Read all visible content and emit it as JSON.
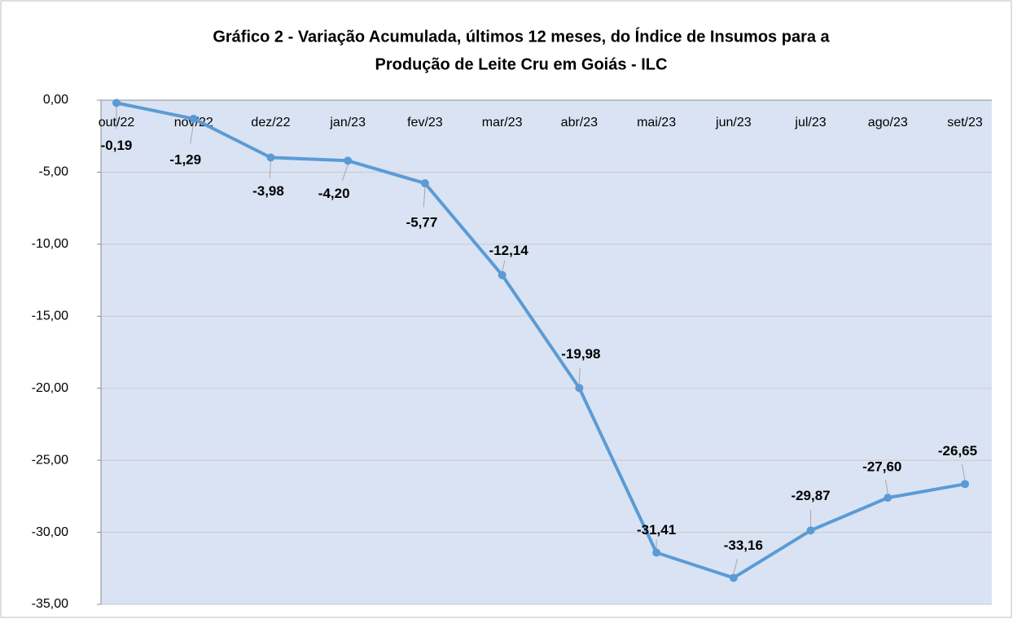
{
  "chart_data": {
    "type": "line",
    "title": [
      "Gráfico 2 - Variação Acumulada, últimos 12 meses, do Índice de Insumos para a",
      "Produção de Leite Cru em Goiás - ILC"
    ],
    "categories": [
      "out/22",
      "nov/22",
      "dez/22",
      "jan/23",
      "fev/23",
      "mar/23",
      "abr/23",
      "mai/23",
      "jun/23",
      "jul/23",
      "ago/23",
      "set/23"
    ],
    "series": [
      {
        "name": "ILC",
        "color": "#5b9bd5",
        "values": [
          -0.19,
          -1.29,
          -3.98,
          -4.2,
          -5.77,
          -12.14,
          -19.98,
          -31.41,
          -33.16,
          -29.87,
          -27.6,
          -26.65
        ],
        "value_labels": [
          "-0,19",
          "-1,29",
          "-3,98",
          "-4,20",
          "-5,77",
          "-12,14",
          "-19,98",
          "-31,41",
          "-33,16",
          "-29,87",
          "-27,60",
          "-26,65"
        ]
      }
    ],
    "ylim": [
      -35,
      0
    ],
    "yticks": [
      {
        "value": 0,
        "label": "0,00"
      },
      {
        "value": -5,
        "label": "-5,00"
      },
      {
        "value": -10,
        "label": "-10,00"
      },
      {
        "value": -15,
        "label": "-15,00"
      },
      {
        "value": -20,
        "label": "-20,00"
      },
      {
        "value": -25,
        "label": "-25,00"
      },
      {
        "value": -30,
        "label": "-30,00"
      },
      {
        "value": -35,
        "label": "-35,00"
      }
    ],
    "grid": true,
    "plot_background": "#dae3f3"
  }
}
